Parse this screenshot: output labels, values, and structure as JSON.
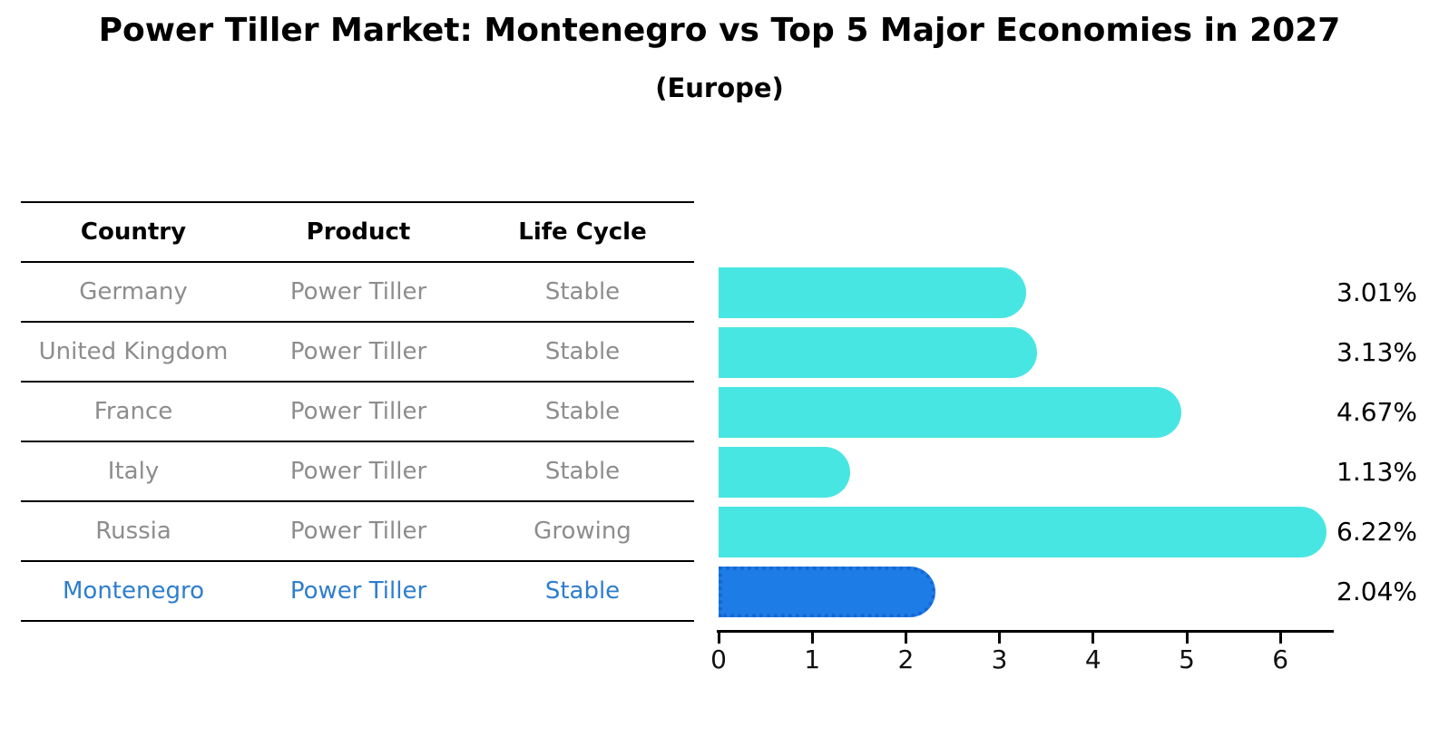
{
  "title": "Power Tiller Market: Montenegro vs Top 5 Major Economies in 2027",
  "subtitle": "(Europe)",
  "table": {
    "headers": [
      "Country",
      "Product",
      "Life Cycle"
    ],
    "rows": [
      {
        "country": "Germany",
        "product": "Power Tiller",
        "life_cycle": "Stable",
        "highlight": false
      },
      {
        "country": "United Kingdom",
        "product": "Power Tiller",
        "life_cycle": "Stable",
        "highlight": false
      },
      {
        "country": "France",
        "product": "Power Tiller",
        "life_cycle": "Stable",
        "highlight": false
      },
      {
        "country": "Italy",
        "product": "Power Tiller",
        "life_cycle": "Stable",
        "highlight": false
      },
      {
        "country": "Russia",
        "product": "Power Tiller",
        "life_cycle": "Growing",
        "highlight": false
      },
      {
        "country": "Montenegro",
        "product": "Power Tiller",
        "life_cycle": "Stable",
        "highlight": true
      }
    ]
  },
  "chart_data": {
    "type": "bar",
    "orientation": "horizontal",
    "title": "Power Tiller Market: Montenegro vs Top 5 Major Economies in 2027",
    "subtitle": "(Europe)",
    "categories": [
      "Germany",
      "United Kingdom",
      "France",
      "Italy",
      "Russia",
      "Montenegro"
    ],
    "values": [
      3.01,
      3.13,
      4.67,
      1.13,
      6.22,
      2.04
    ],
    "value_labels": [
      "3.01%",
      "3.13%",
      "4.67%",
      "1.13%",
      "6.22%",
      "2.04%"
    ],
    "unit": "%",
    "xlabel": "",
    "ylabel": "",
    "x_ticks": [
      "0",
      "1",
      "2",
      "3",
      "4",
      "5",
      "6"
    ],
    "xlim": [
      0,
      6.55
    ],
    "grid": false,
    "legend": false,
    "highlight_index": 5
  },
  "colors": {
    "bar": "#48e6e3",
    "highlight_bar": "#1e7ce6",
    "highlight_bar_border": "#1565d8",
    "highlight_text": "#2e7ecd",
    "row_text": "#8d8d8d",
    "axis": "#000000"
  }
}
